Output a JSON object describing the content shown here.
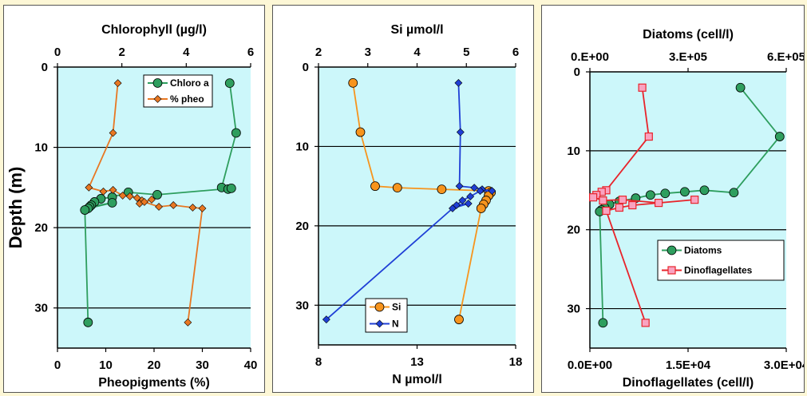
{
  "chart_data": [
    {
      "type": "line",
      "ylabel": "Depth (m)",
      "yrange": [
        0,
        35
      ],
      "yticks": [
        0,
        10,
        20,
        30
      ],
      "y_inverted": true,
      "grid": "horizontal",
      "legend": "top-right",
      "top_axis": {
        "label": "Chlorophyll (µg/l)",
        "range": [
          0,
          6
        ],
        "ticks": [
          "0",
          "2",
          "4",
          "6"
        ]
      },
      "bottom_axis": {
        "label": "Pheopigments (%)",
        "range": [
          0,
          40
        ],
        "ticks": [
          "0",
          "10",
          "20",
          "30",
          "40"
        ]
      },
      "series": [
        {
          "name": "Chloro a",
          "axis": "top",
          "color": "#2e9e5e",
          "marker": "circle",
          "points": [
            [
              5.35,
              2
            ],
            [
              5.55,
              8.2
            ],
            [
              5.1,
              15
            ],
            [
              5.3,
              15.2
            ],
            [
              5.4,
              15.1
            ],
            [
              3.1,
              15.9
            ],
            [
              2.2,
              15.6
            ],
            [
              1.7,
              16.2
            ],
            [
              1.35,
              16.4
            ],
            [
              1.15,
              16.8
            ],
            [
              1.05,
              17.2
            ],
            [
              1.0,
              17.4
            ],
            [
              1.7,
              16.9
            ],
            [
              0.95,
              17.6
            ],
            [
              0.85,
              17.8
            ],
            [
              0.95,
              31.8
            ]
          ]
        },
        {
          "name": "% pheo",
          "axis": "bottom",
          "color": "#e87722",
          "marker": "diamond",
          "points": [
            [
              12.5,
              2
            ],
            [
              11.5,
              8.2
            ],
            [
              6.5,
              15
            ],
            [
              9.5,
              15.5
            ],
            [
              11.5,
              15.3
            ],
            [
              13.5,
              16.0
            ],
            [
              15,
              16.1
            ],
            [
              16.5,
              16.3
            ],
            [
              17.5,
              16.6
            ],
            [
              17,
              17
            ],
            [
              19.5,
              16.5
            ],
            [
              18,
              16.8
            ],
            [
              21,
              17.4
            ],
            [
              24,
              17.2
            ],
            [
              28,
              17.5
            ],
            [
              30,
              17.6
            ],
            [
              27,
              31.8
            ]
          ]
        }
      ]
    },
    {
      "type": "line",
      "ylabel": "",
      "yrange": [
        0,
        35
      ],
      "yticks": [
        0,
        10,
        20,
        30
      ],
      "y_inverted": true,
      "grid": "horizontal",
      "legend": "bottom-left",
      "top_axis": {
        "label": "Si µmol/l",
        "range": [
          2,
          6
        ],
        "ticks": [
          "2",
          "3",
          "4",
          "5",
          "6"
        ]
      },
      "bottom_axis": {
        "label": "N  µmol/l",
        "range": [
          8,
          18
        ],
        "ticks": [
          "8",
          "13",
          "18"
        ]
      },
      "series": [
        {
          "name": "Si",
          "axis": "top",
          "color": "#f7941d",
          "marker": "circle",
          "points": [
            [
              2.7,
              2
            ],
            [
              2.85,
              8.2
            ],
            [
              3.15,
              15
            ],
            [
              3.6,
              15.2
            ],
            [
              4.5,
              15.4
            ],
            [
              5.45,
              15.6
            ],
            [
              5.5,
              15.8
            ],
            [
              5.45,
              16.2
            ],
            [
              5.4,
              16.8
            ],
            [
              5.35,
              17.3
            ],
            [
              5.3,
              17.8
            ],
            [
              4.85,
              31.8
            ]
          ]
        },
        {
          "name": "N",
          "axis": "bottom",
          "color": "#1f3fd6",
          "marker": "diamond",
          "points": [
            [
              15.1,
              2
            ],
            [
              15.2,
              8.2
            ],
            [
              15.15,
              15
            ],
            [
              15.9,
              15.2
            ],
            [
              16.3,
              15.4
            ],
            [
              16.8,
              15.6
            ],
            [
              16.2,
              15.6
            ],
            [
              15.7,
              16.3
            ],
            [
              15.3,
              16.8
            ],
            [
              15.0,
              17.4
            ],
            [
              15.6,
              17.2
            ],
            [
              14.8,
              17.8
            ],
            [
              8.4,
              31.8
            ]
          ]
        }
      ]
    },
    {
      "type": "line",
      "ylabel": "",
      "yrange": [
        0,
        35
      ],
      "yticks": [
        0,
        10,
        20,
        30
      ],
      "y_inverted": true,
      "grid": "horizontal",
      "legend": "lower-right",
      "top_axis": {
        "label": "Diatoms  (cell/l)",
        "range": [
          0,
          600000
        ],
        "ticks": [
          "0.E+00",
          "3.E+05",
          "6.E+05"
        ]
      },
      "bottom_axis": {
        "label": "Dinoflagellates  (cell/l)",
        "range": [
          0,
          30000
        ],
        "ticks": [
          "0.0E+00",
          "1.5E+04",
          "3.0E+04"
        ]
      },
      "series": [
        {
          "name": "Diatoms",
          "axis": "top",
          "color": "#2e9e5e",
          "marker": "circle",
          "points": [
            [
              460000,
              2
            ],
            [
              580000,
              8.2
            ],
            [
              440000,
              15.3
            ],
            [
              350000,
              15
            ],
            [
              290000,
              15.2
            ],
            [
              230000,
              15.4
            ],
            [
              185000,
              15.6
            ],
            [
              140000,
              16.0
            ],
            [
              90000,
              16.4
            ],
            [
              60000,
              16.8
            ],
            [
              45000,
              17.2
            ],
            [
              35000,
              17.5
            ],
            [
              30000,
              17.7
            ],
            [
              40000,
              31.8
            ]
          ]
        },
        {
          "name": "Dinoflagellates",
          "axis": "bottom",
          "color": "#e8242b",
          "marker": "square",
          "points": [
            [
              8000,
              2
            ],
            [
              9000,
              8.2
            ],
            [
              2500,
              15
            ],
            [
              1800,
              15.2
            ],
            [
              1000,
              15.6
            ],
            [
              500,
              15.9
            ],
            [
              2000,
              16.3
            ],
            [
              5000,
              16.2
            ],
            [
              10500,
              16.6
            ],
            [
              16000,
              16.2
            ],
            [
              6500,
              16.9
            ],
            [
              4500,
              17.2
            ],
            [
              2500,
              17.6
            ],
            [
              8500,
              31.8
            ]
          ]
        }
      ]
    }
  ]
}
